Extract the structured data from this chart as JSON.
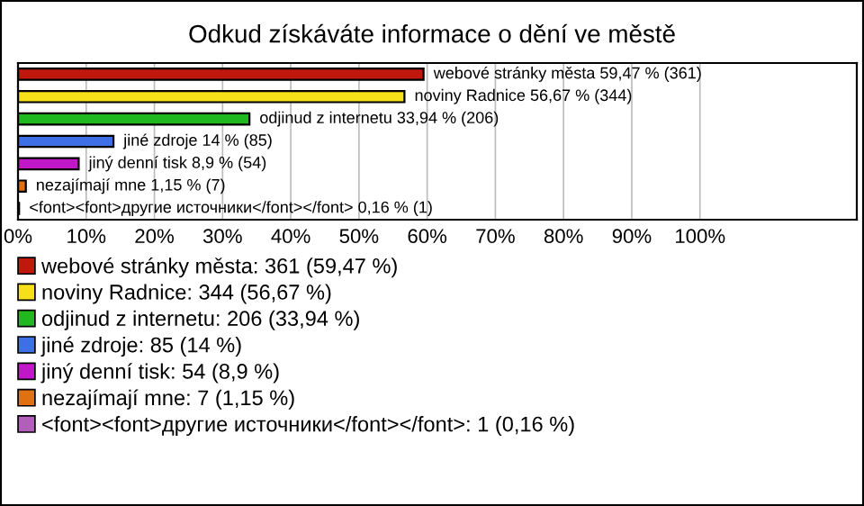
{
  "chart_data": {
    "type": "bar",
    "orientation": "horizontal",
    "title": "Odkud získáváte informace o dění ve městě",
    "categories": [
      null,
      null,
      null,
      null,
      null,
      null,
      null
    ],
    "series": [
      {
        "name": "webové stránky města: 361 (59,47 %)",
        "color": "#c0180c",
        "values": [
          59.47,
          null,
          null,
          null,
          null,
          null,
          null
        ],
        "value_labels": [
          "webové stránky města 59,47 % (361)",
          null,
          null,
          null,
          null,
          null,
          null
        ]
      },
      {
        "name": "noviny Radnice: 344 (56,67 %)",
        "color": "#f5e01a",
        "values": [
          null,
          56.67,
          null,
          null,
          null,
          null,
          null
        ],
        "value_labels": [
          null,
          "noviny Radnice 56,67 % (344)",
          null,
          null,
          null,
          null,
          null
        ]
      },
      {
        "name": "odjinud z internetu: 206 (33,94 %)",
        "color": "#1fb81f",
        "values": [
          null,
          null,
          33.94,
          null,
          null,
          null,
          null
        ],
        "value_labels": [
          null,
          null,
          "odjinud z internetu 33,94 % (206)",
          null,
          null,
          null,
          null
        ]
      },
      {
        "name": "jiné zdroje: 85 (14 %)",
        "color": "#3f6fe6",
        "values": [
          null,
          null,
          null,
          14,
          null,
          null,
          null
        ],
        "value_labels": [
          null,
          null,
          null,
          "jiné zdroje 14 % (85)",
          null,
          null,
          null
        ]
      },
      {
        "name": "jiný denní tisk: 54 (8,9 %)",
        "color": "#c018c8",
        "values": [
          null,
          null,
          null,
          null,
          8.9,
          null,
          null
        ],
        "value_labels": [
          null,
          null,
          null,
          null,
          "jiný denní tisk 8,9 % (54)",
          null,
          null
        ]
      },
      {
        "name": "nezajímají mne: 7 (1,15 %)",
        "color": "#e07010",
        "values": [
          null,
          null,
          null,
          null,
          null,
          1.15,
          null
        ],
        "value_labels": [
          null,
          null,
          null,
          null,
          null,
          "nezajímají mne 1,15 % (7)",
          null
        ]
      },
      {
        "name": "<font><font>другие источники</font></font>: 1 (0,16 %)",
        "color": "#b060b8",
        "values": [
          null,
          null,
          null,
          null,
          null,
          null,
          0.16
        ],
        "value_labels": [
          null,
          null,
          null,
          null,
          null,
          null,
          "<font><font>другие источники</font></font> 0,16 % (1)"
        ]
      }
    ],
    "xlim": [
      0,
      123
    ],
    "xticks": [
      {
        "value": 0,
        "label": "0%"
      },
      {
        "value": 10,
        "label": "10%"
      },
      {
        "value": 20,
        "label": "20%"
      },
      {
        "value": 30,
        "label": "30%"
      },
      {
        "value": 40,
        "label": "40%"
      },
      {
        "value": 50,
        "label": "50%"
      },
      {
        "value": 60,
        "label": "60%"
      },
      {
        "value": 70,
        "label": "70%"
      },
      {
        "value": 80,
        "label": "80%"
      },
      {
        "value": 90,
        "label": "90%"
      },
      {
        "value": 100,
        "label": "100%"
      }
    ],
    "grid": "x",
    "legend": "bottom"
  }
}
